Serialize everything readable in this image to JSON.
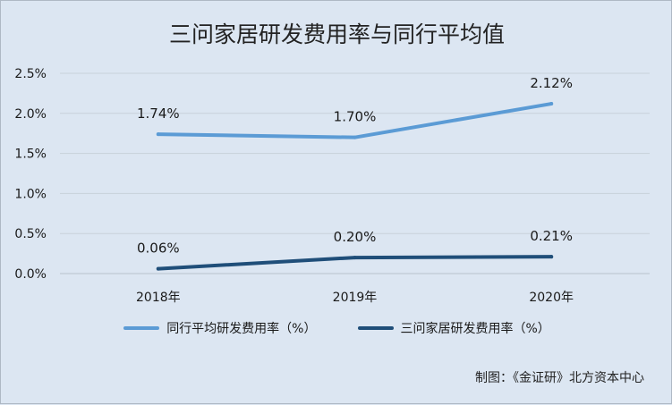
{
  "chart_data": {
    "type": "line",
    "title": "三问家居研发费用率与同行平均值",
    "categories": [
      "2018年",
      "2019年",
      "2020年"
    ],
    "yticks": [
      "0.0%",
      "0.5%",
      "1.0%",
      "1.5%",
      "2.0%",
      "2.5%"
    ],
    "ylim": [
      0,
      2.5
    ],
    "grid": true,
    "legend_position": "bottom",
    "series": [
      {
        "name": "同行平均研发费用率（%）",
        "values": [
          1.74,
          1.7,
          2.12
        ],
        "labels": [
          "1.74%",
          "1.70%",
          "2.12%"
        ],
        "color": "#5b9bd5"
      },
      {
        "name": "三问家居研发费用率（%）",
        "values": [
          0.06,
          0.2,
          0.21
        ],
        "labels": [
          "0.06%",
          "0.20%",
          "0.21%"
        ],
        "color": "#1f4e79"
      }
    ]
  },
  "source": "制图：《金证研》北方资本中心"
}
